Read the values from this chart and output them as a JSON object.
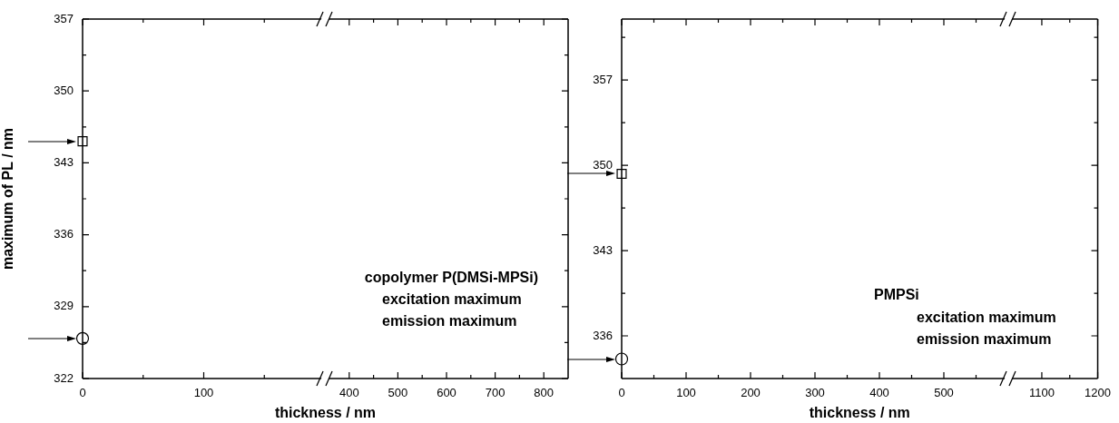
{
  "chart_data": [
    {
      "type": "scatter",
      "xlabel": "thickness / nm",
      "ylabel": "maximum of PL / nm",
      "x": [
        0
      ],
      "series": [
        {
          "color": "#000000",
          "marker": "square",
          "values": [
            345.1
          ]
        },
        {
          "color": "#000000",
          "marker": "circle",
          "values": [
            325.9
          ]
        }
      ],
      "xlim": [
        0,
        200
      ],
      "xticks": [
        0,
        {
          "value": 50,
          "label": null
        },
        100,
        {
          "value": 150,
          "label": null
        }
      ],
      "ylim": [
        322,
        357
      ],
      "yticks": [
        322,
        {
          "value": 325.5,
          "label": null
        },
        329,
        {
          "value": 332.5,
          "label": null
        },
        336,
        {
          "value": 339.5,
          "label": null
        },
        343,
        {
          "value": 346.5,
          "label": null
        },
        350,
        {
          "value": 353.5,
          "label": null
        },
        357
      ],
      "annotations": [
        "copolymer P(DMSi-MPSi)",
        "excitation maximum",
        "emission maximum"
      ],
      "grid": false,
      "legend": false
    },
    {
      "type": "scatter",
      "xlim": [
        350,
        850
      ],
      "xticks": [
        400,
        {
          "value": 450,
          "label": null
        },
        500,
        {
          "value": 550,
          "label": null
        },
        600,
        {
          "value": 650,
          "label": null
        },
        700,
        {
          "value": 750,
          "label": null
        },
        800
      ],
      "ylim": [
        322,
        357
      ],
      "yticks": [
        322,
        {
          "value": 325.5,
          "label": null
        },
        329,
        {
          "value": 332.5,
          "label": null
        },
        336,
        {
          "value": 339.5,
          "label": null
        },
        343,
        {
          "value": 346.5,
          "label": null
        },
        350,
        {
          "value": 353.5,
          "label": null
        },
        357
      ],
      "tick_labels": "x",
      "grid": false,
      "legend": false
    },
    {
      "type": "scatter",
      "xlabel": "thickness / nm",
      "x": [
        0
      ],
      "series": [
        {
          "color": "#000000",
          "marker": "square",
          "values": [
            349.3
          ]
        },
        {
          "color": "#000000",
          "marker": "circle",
          "values": [
            334.1
          ]
        }
      ],
      "xlim": [
        0,
        600
      ],
      "xticks": [
        0,
        {
          "value": 50,
          "label": null
        },
        100,
        {
          "value": 150,
          "label": null
        },
        200,
        {
          "value": 250,
          "label": null
        },
        300,
        {
          "value": 350,
          "label": null
        },
        400,
        {
          "value": 450,
          "label": null
        },
        500,
        {
          "value": 550,
          "label": null
        }
      ],
      "ylim": [
        332.5,
        362
      ],
      "yticks": [
        336,
        {
          "value": 339.5,
          "label": null
        },
        343,
        {
          "value": 346.5,
          "label": null
        },
        350,
        {
          "value": 353.5,
          "label": null
        },
        357,
        {
          "value": 360.5,
          "label": null
        }
      ],
      "annotations": [
        "PMPSi",
        "excitation maximum",
        "emission maximum"
      ],
      "grid": false,
      "legend": false
    },
    {
      "type": "scatter",
      "xlim": [
        1040,
        1200
      ],
      "xticks": [
        1100,
        {
          "value": 1150,
          "label": null
        },
        1200
      ],
      "ylim": [
        332.5,
        362
      ],
      "yticks": [
        336,
        {
          "value": 339.5,
          "label": null
        },
        343,
        {
          "value": 346.5,
          "label": null
        },
        350,
        {
          "value": 353.5,
          "label": null
        },
        357,
        {
          "value": 360.5,
          "label": null
        }
      ],
      "tick_labels": "x",
      "grid": false,
      "legend": false
    }
  ]
}
